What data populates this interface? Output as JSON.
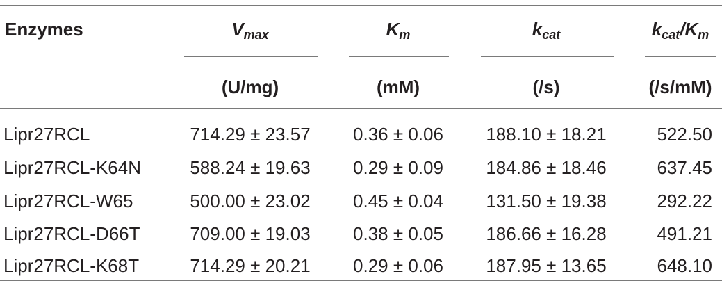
{
  "table": {
    "header": {
      "enzyme_label": "Enzymes",
      "vmax": {
        "sym": "V",
        "sub": "max",
        "unit": "(U/mg)"
      },
      "km": {
        "sym": "K",
        "sub": "m",
        "unit": "(mM)"
      },
      "kcat": {
        "sym": "k",
        "sub": "cat",
        "unit": "(/s)"
      },
      "kcatkm": {
        "sym1": "k",
        "sub1": "cat",
        "slash": "/",
        "sym2": "K",
        "sub2": "m",
        "unit": "(/s/mM)"
      }
    },
    "rows": [
      {
        "enzyme": "Lipr27RCL",
        "vmax": "714.29 ± 23.57",
        "km": "0.36 ± 0.06",
        "kcat": "188.10 ± 18.21",
        "kcatkm": "522.50"
      },
      {
        "enzyme": "Lipr27RCL-K64N",
        "vmax": "588.24 ± 19.63",
        "km": "0.29 ± 0.09",
        "kcat": "184.86 ± 18.46",
        "kcatkm": "637.45"
      },
      {
        "enzyme": "Lipr27RCL-W65",
        "vmax": "500.00 ± 23.02",
        "km": "0.45 ± 0.04",
        "kcat": "131.50 ± 19.38",
        "kcatkm": "292.22"
      },
      {
        "enzyme": "Lipr27RCL-D66T",
        "vmax": "709.00 ± 19.03",
        "km": "0.38 ± 0.05",
        "kcat": "186.66 ± 16.28",
        "kcatkm": "491.21"
      },
      {
        "enzyme": "Lipr27RCL-K68T",
        "vmax": "714.29 ± 20.21",
        "km": "0.29 ± 0.06",
        "kcat": "187.95 ± 13.65",
        "kcatkm": "648.10"
      }
    ]
  }
}
